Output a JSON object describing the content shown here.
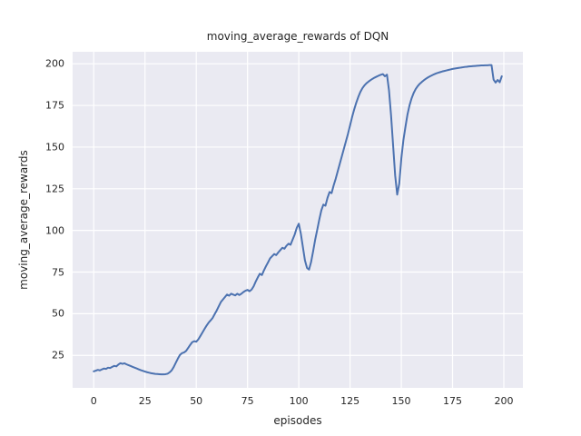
{
  "figure": {
    "title": "moving_average_rewards of DQN",
    "xlabel": "episodes",
    "ylabel": "moving_average_rewards"
  },
  "chart_data": {
    "type": "line",
    "title": "moving_average_rewards of DQN",
    "xlabel": "episodes",
    "ylabel": "moving_average_rewards",
    "xlim": [
      -10.3,
      209.3
    ],
    "ylim": [
      5.5,
      207.2
    ],
    "x_ticks": [
      0,
      25,
      50,
      75,
      100,
      125,
      150,
      175,
      200
    ],
    "y_ticks": [
      25,
      50,
      75,
      100,
      125,
      150,
      175,
      200
    ],
    "grid": true,
    "legend_position": "none",
    "style": {
      "line_color": "#4C72B0",
      "line_width": 2,
      "plot_background": "#EAEAF2",
      "grid_color": "#FFFFFF",
      "figure_background": "#FFFFFF",
      "text_color": "#262626"
    },
    "series": [
      {
        "name": "moving_average_rewards",
        "x_start": 0,
        "x_step": 1,
        "values": [
          15.4,
          15.8,
          16.3,
          16.0,
          16.6,
          17.1,
          16.9,
          17.6,
          17.4,
          18.1,
          18.7,
          18.4,
          19.5,
          20.3,
          19.9,
          20.2,
          19.6,
          19.1,
          18.6,
          18.1,
          17.6,
          17.1,
          16.6,
          16.1,
          15.7,
          15.3,
          14.9,
          14.6,
          14.3,
          14.1,
          13.9,
          13.8,
          13.7,
          13.6,
          13.6,
          13.7,
          14.0,
          14.8,
          16.0,
          18.0,
          20.5,
          23.0,
          25.2,
          26.3,
          26.7,
          27.6,
          29.4,
          31.2,
          32.9,
          33.5,
          33.2,
          34.6,
          36.6,
          38.7,
          40.8,
          42.8,
          44.6,
          46.0,
          47.5,
          49.8,
          52.0,
          54.5,
          57.0,
          58.5,
          60.0,
          61.5,
          60.8,
          62.0,
          61.5,
          61.0,
          62.0,
          61.2,
          62.0,
          63.0,
          63.8,
          64.3,
          63.5,
          64.5,
          66.5,
          69.3,
          71.8,
          74.0,
          73.2,
          76.0,
          78.5,
          80.8,
          83.2,
          84.5,
          85.8,
          85.2,
          86.8,
          88.2,
          89.6,
          89.0,
          90.8,
          92.0,
          91.4,
          94.5,
          97.5,
          101.5,
          104.0,
          98.0,
          90.0,
          82.0,
          77.5,
          76.5,
          81.0,
          87.5,
          94.5,
          100.4,
          106.5,
          112.0,
          115.5,
          114.8,
          119.5,
          123.0,
          122.4,
          127.0,
          131.0,
          135.5,
          140.0,
          144.5,
          149.0,
          153.5,
          158.0,
          163.0,
          168.0,
          172.5,
          176.5,
          180.0,
          183.0,
          185.3,
          187.0,
          188.3,
          189.3,
          190.2,
          191.0,
          191.7,
          192.3,
          192.9,
          193.4,
          193.8,
          192.5,
          193.5,
          184.0,
          169.0,
          151.0,
          133.0,
          121.5,
          128.0,
          143.0,
          154.0,
          162.0,
          169.5,
          175.0,
          179.2,
          182.4,
          184.8,
          186.6,
          188.0,
          189.1,
          190.1,
          191.0,
          191.8,
          192.5,
          193.1,
          193.7,
          194.2,
          194.6,
          195.0,
          195.4,
          195.7,
          196.0,
          196.3,
          196.6,
          196.9,
          197.1,
          197.3,
          197.5,
          197.7,
          197.9,
          198.1,
          198.2,
          198.4,
          198.5,
          198.6,
          198.7,
          198.8,
          198.9,
          199.0,
          199.0,
          199.1,
          199.1,
          199.2,
          199.2,
          190.5,
          188.7,
          190.3,
          188.9,
          192.5
        ]
      }
    ]
  }
}
